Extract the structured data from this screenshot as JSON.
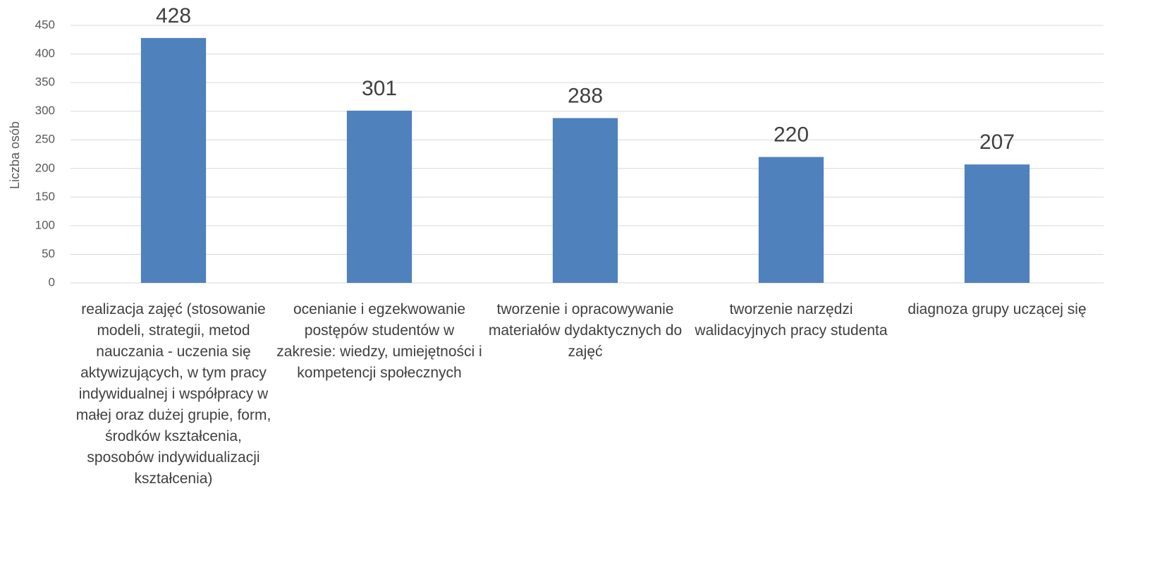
{
  "chart_data": {
    "type": "bar",
    "y_label": "Liczba osób",
    "categories": [
      "realizacja zajęć (stosowanie modeli, strategii, metod nauczania - uczenia się aktywizujących, w tym pracy indywidualnej i współpracy w małej oraz dużej grupie, form, środków kształcenia, sposobów indywidualizacji kształcenia)",
      "ocenianie i egzekwowanie postępów studentów w zakresie: wiedzy, umiejętności i kompetencji społecznych",
      "tworzenie i opracowywanie materiałów dydaktycznych do zajęć",
      "tworzenie narzędzi walidacyjnych pracy studenta",
      "diagnoza grupy uczącej się"
    ],
    "values": [
      428,
      301,
      288,
      220,
      207
    ],
    "color": "#4f81bd",
    "ylim": [
      0,
      450
    ],
    "yticks": [
      0,
      50,
      100,
      150,
      200,
      250,
      300,
      350,
      400,
      450
    ],
    "grid": true
  }
}
